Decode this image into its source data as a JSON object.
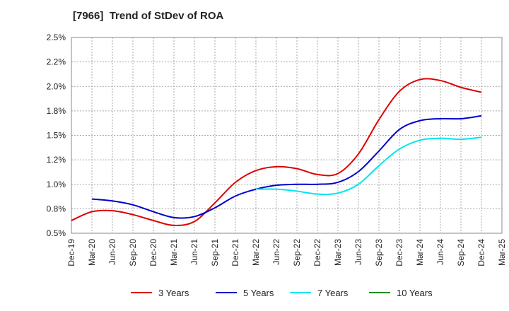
{
  "chart_data": {
    "type": "line",
    "title": "[7966]  Trend of StDev of ROA",
    "xlabel": "",
    "ylabel": "",
    "x": [
      "Dec-19",
      "Mar-20",
      "Jun-20",
      "Sep-20",
      "Dec-20",
      "Mar-21",
      "Jun-21",
      "Sep-21",
      "Dec-21",
      "Mar-22",
      "Jun-22",
      "Sep-22",
      "Dec-22",
      "Mar-23",
      "Jun-23",
      "Sep-23",
      "Dec-23",
      "Mar-24",
      "Jun-24",
      "Sep-24",
      "Dec-24",
      "Mar-25"
    ],
    "ylim": [
      0.5,
      2.5
    ],
    "yticks": [
      0.5,
      0.75,
      1.0,
      1.25,
      1.5,
      1.75,
      2.0,
      2.25,
      2.5
    ],
    "ytick_labels": [
      "0.5%",
      "0.8%",
      "1.0%",
      "1.2%",
      "1.5%",
      "1.8%",
      "2.0%",
      "2.2%",
      "2.5%"
    ],
    "grid": true,
    "legend_position": "bottom",
    "series": [
      {
        "name": "3 Years",
        "color": "#dd0000",
        "values": [
          0.63,
          0.72,
          0.73,
          0.69,
          0.63,
          0.58,
          0.62,
          0.81,
          1.02,
          1.14,
          1.18,
          1.16,
          1.1,
          1.11,
          1.31,
          1.66,
          1.95,
          2.07,
          2.06,
          1.99,
          1.94,
          null
        ]
      },
      {
        "name": "5 Years",
        "color": "#0000cc",
        "values": [
          null,
          0.85,
          0.83,
          0.79,
          0.72,
          0.66,
          0.67,
          0.76,
          0.88,
          0.95,
          0.99,
          1.0,
          1.0,
          1.02,
          1.13,
          1.34,
          1.56,
          1.65,
          1.67,
          1.67,
          1.7,
          null
        ]
      },
      {
        "name": "7 Years",
        "color": "#00e5ee",
        "values": [
          null,
          null,
          null,
          null,
          null,
          null,
          null,
          null,
          null,
          0.95,
          0.95,
          0.93,
          0.9,
          0.91,
          1.0,
          1.19,
          1.36,
          1.45,
          1.47,
          1.46,
          1.48,
          null
        ]
      },
      {
        "name": "10 Years",
        "color": "#228b22",
        "values": [
          null,
          null,
          null,
          null,
          null,
          null,
          null,
          null,
          null,
          null,
          null,
          null,
          null,
          null,
          null,
          null,
          null,
          null,
          null,
          null,
          null,
          null
        ]
      }
    ]
  }
}
